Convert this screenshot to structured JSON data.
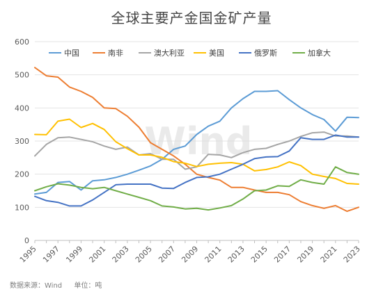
{
  "chart_data": {
    "type": "line",
    "title": "全球主要产金国金矿产量",
    "xlabel": "",
    "ylabel": "",
    "ylim": [
      0,
      600
    ],
    "yticks": [
      0,
      100,
      200,
      300,
      400,
      500,
      600
    ],
    "grid": true,
    "legend_position": "top-right",
    "x": [
      1995,
      1996,
      1997,
      1998,
      1999,
      2000,
      2001,
      2002,
      2003,
      2004,
      2005,
      2006,
      2007,
      2008,
      2009,
      2010,
      2011,
      2012,
      2013,
      2014,
      2015,
      2016,
      2017,
      2018,
      2019,
      2020,
      2021,
      2022,
      2023
    ],
    "xtick_labels": [
      "1995",
      "1997",
      "1999",
      "2001",
      "2003",
      "2005",
      "2007",
      "2009",
      "2011",
      "2013",
      "2015",
      "2017",
      "2019",
      "2021",
      "2023"
    ],
    "series": [
      {
        "name": "中国",
        "color": "#5b9bd5",
        "values": [
          140,
          145,
          175,
          178,
          152,
          180,
          183,
          190,
          200,
          212,
          225,
          245,
          275,
          285,
          320,
          345,
          360,
          400,
          428,
          450,
          450,
          452,
          425,
          400,
          380,
          365,
          330,
          372,
          371
        ]
      },
      {
        "name": "南非",
        "color": "#ed7d31",
        "values": [
          522,
          497,
          493,
          463,
          450,
          432,
          400,
          398,
          375,
          342,
          295,
          275,
          255,
          230,
          200,
          190,
          182,
          160,
          160,
          152,
          145,
          145,
          138,
          117,
          105,
          97,
          105,
          88,
          100
        ]
      },
      {
        "name": "澳大利亚",
        "color": "#a5a5a5",
        "values": [
          255,
          290,
          310,
          312,
          305,
          298,
          285,
          275,
          282,
          258,
          262,
          245,
          245,
          215,
          222,
          260,
          258,
          250,
          265,
          275,
          278,
          290,
          300,
          314,
          325,
          327,
          315,
          315,
          312
        ]
      },
      {
        "name": "美国",
        "color": "#ffc000",
        "values": [
          320,
          319,
          360,
          366,
          341,
          353,
          335,
          298,
          277,
          258,
          258,
          251,
          238,
          233,
          223,
          230,
          233,
          235,
          230,
          210,
          214,
          222,
          237,
          226,
          200,
          193,
          187,
          172,
          170
        ]
      },
      {
        "name": "俄罗斯",
        "color": "#4472c4",
        "values": [
          133,
          120,
          115,
          104,
          104,
          122,
          145,
          168,
          170,
          170,
          170,
          158,
          157,
          175,
          190,
          192,
          200,
          215,
          230,
          247,
          252,
          253,
          270,
          310,
          305,
          305,
          318,
          312,
          312
        ]
      },
      {
        "name": "加拿大",
        "color": "#70ad47",
        "values": [
          150,
          162,
          171,
          167,
          160,
          156,
          160,
          150,
          140,
          130,
          120,
          104,
          101,
          95,
          97,
          92,
          98,
          105,
          125,
          150,
          152,
          165,
          163,
          183,
          175,
          170,
          222,
          205,
          200
        ]
      }
    ]
  },
  "watermark": "Wind",
  "footer": {
    "source": "数据来源：Wind",
    "unit": "单位：吨"
  }
}
